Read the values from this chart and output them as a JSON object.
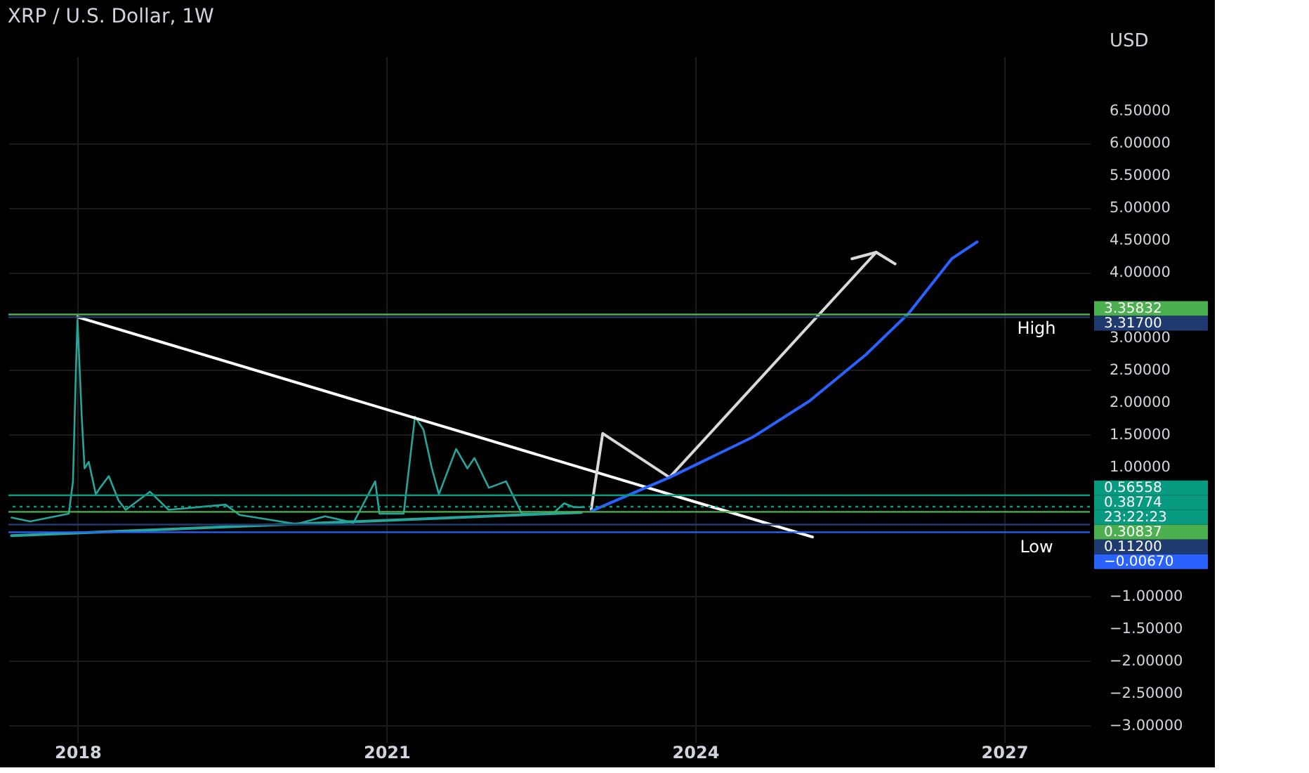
{
  "chart_data": {
    "type": "line",
    "title": "XRP / U.S. Dollar, 1W",
    "ylabel": "USD",
    "xlim": [
      "2017-05-01",
      "2027-11-01"
    ],
    "xticks": [
      {
        "value": "2018-01-01",
        "label": "2018"
      },
      {
        "value": "2021-01-01",
        "label": "2021"
      },
      {
        "value": "2024-01-01",
        "label": "2024"
      },
      {
        "value": "2027-01-01",
        "label": "2027"
      }
    ],
    "ylim": [
      -3.25,
      7.35
    ],
    "yticks": [
      {
        "value": -3,
        "label": "−3.00000"
      },
      {
        "value": -2.5,
        "label": "−2.50000"
      },
      {
        "value": -2,
        "label": "−2.00000"
      },
      {
        "value": -1.5,
        "label": "−1.50000"
      },
      {
        "value": -1,
        "label": "−1.00000"
      },
      {
        "value": 1,
        "label": "1.00000"
      },
      {
        "value": 1.5,
        "label": "1.50000"
      },
      {
        "value": 2,
        "label": "2.00000"
      },
      {
        "value": 2.5,
        "label": "2.50000"
      },
      {
        "value": 3,
        "label": "3.00000"
      },
      {
        "value": 4,
        "label": "4.00000"
      },
      {
        "value": 4.5,
        "label": "4.50000"
      },
      {
        "value": 5,
        "label": "5.00000"
      },
      {
        "value": 5.5,
        "label": "5.50000"
      },
      {
        "value": 6,
        "label": "6.00000"
      },
      {
        "value": 6.5,
        "label": "6.50000"
      }
    ],
    "grid": true,
    "series": [
      {
        "color": "#26a69a",
        "x": [
          "2017-05-12",
          "2017-07-17",
          "2017-12-01",
          "2017-12-16",
          "2017-12-26",
          "2018-01-01",
          "2018-01-16",
          "2018-01-26",
          "2018-02-10",
          "2018-03-07",
          "2018-03-22",
          "2018-04-22",
          "2018-05-27",
          "2018-06-21",
          "2018-09-15",
          "2018-11-20",
          "2019-06-10",
          "2019-07-30",
          "2020-02-17",
          "2020-05-28",
          "2020-09-06",
          "2020-11-22",
          "2020-12-07",
          "2021-03-03",
          "2021-04-12",
          "2021-05-12",
          "2021-06-11",
          "2021-07-06",
          "2021-09-05",
          "2021-10-15",
          "2021-11-09",
          "2021-12-30",
          "2022-03-01",
          "2022-04-26",
          "2022-08-14",
          "2022-09-23",
          "2022-10-28",
          "2022-12-03"
        ],
        "values": [
          0.22,
          0.16,
          0.28,
          0.78,
          2.44,
          3.28,
          1.78,
          0.98,
          1.08,
          0.58,
          0.68,
          0.86,
          0.48,
          0.34,
          0.62,
          0.34,
          0.42,
          0.26,
          0.12,
          0.24,
          0.14,
          0.78,
          0.28,
          0.28,
          1.78,
          1.58,
          0.98,
          0.58,
          1.28,
          0.98,
          1.14,
          0.68,
          0.78,
          0.28,
          0.28,
          0.44,
          0.38,
          0.38
        ]
      },
      {
        "color": "#ffffff",
        "x": [
          "2018-01-01",
          "2025-02-20"
        ],
        "values": [
          3.32,
          -0.08
        ]
      },
      {
        "color": "#26a69a",
        "x": [
          "2017-05-12",
          "2022-11-23"
        ],
        "values": [
          -0.06,
          0.3
        ]
      },
      {
        "color": "#d9d9d9",
        "x": [
          "2022-12-28",
          "2023-02-07",
          "2023-10-02",
          "2025-10-04"
        ],
        "values": [
          0.34,
          1.52,
          0.84,
          4.32
        ]
      },
      {
        "color": "#d9d9d9",
        "x": [
          "2025-07-10",
          "2025-10-04",
          "2025-12-10"
        ],
        "values": [
          4.22,
          4.32,
          4.14
        ]
      },
      {
        "color": "#2962ff",
        "x": [
          "2022-12-28",
          "2023-10-02",
          "2024-07-22",
          "2025-02-09",
          "2025-08-29",
          "2026-01-28",
          "2026-06-29",
          "2026-09-27"
        ],
        "values": [
          0.32,
          0.84,
          1.46,
          2.02,
          2.74,
          3.38,
          4.22,
          4.48
        ]
      }
    ],
    "ref_lines": [
      {
        "axis": "y",
        "value": 3.35832,
        "label": "3.35832",
        "color": "#4caf50",
        "line_style": "solid"
      },
      {
        "axis": "y",
        "value": 3.317,
        "label": "3.31700",
        "color": "#1e3a6e",
        "line_style": "solid"
      },
      {
        "axis": "y",
        "value": 0.56558,
        "label": "0.56558",
        "color": "#089981",
        "line_style": "solid"
      },
      {
        "axis": "y",
        "value": 0.38774,
        "label": "0.38774",
        "color": "#089981",
        "line_style": "dotted"
      },
      {
        "axis": "y",
        "value": 0.30837,
        "label": "0.30837",
        "color": "#4caf50",
        "line_style": "solid"
      },
      {
        "axis": "y",
        "value": 0.112,
        "label": "0.11200",
        "color": "#1e3a6e",
        "line_style": "solid"
      },
      {
        "axis": "y",
        "value": -0.0067,
        "label": "−0.00670",
        "color": "#2962ff",
        "line_style": "solid"
      }
    ],
    "annotations": [
      {
        "text": "High",
        "y": 3.317
      },
      {
        "text": "Low",
        "y": 0.112
      },
      "23:22:23"
    ]
  }
}
